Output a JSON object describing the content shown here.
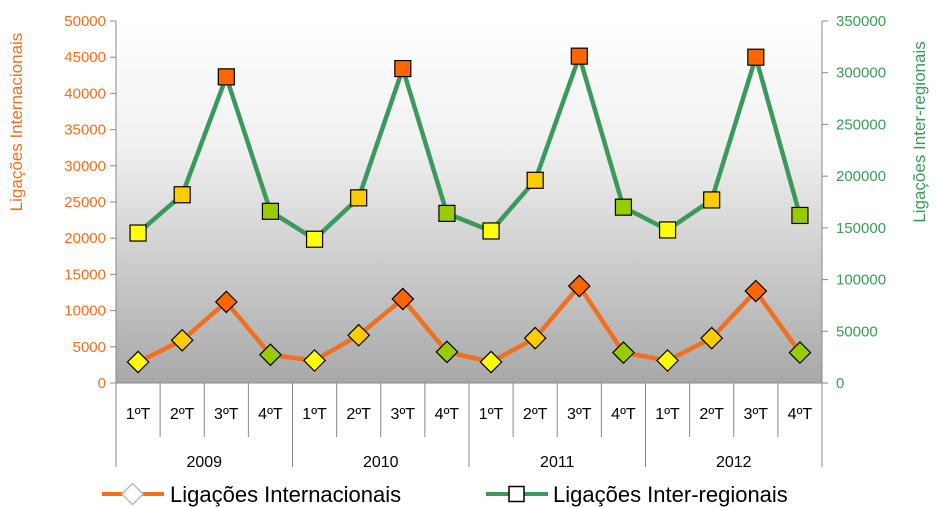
{
  "chart_data": {
    "type": "line",
    "y_left": {
      "label": "Ligações Internacionais",
      "min": 0,
      "max": 50000,
      "step": 5000,
      "color": "#f07020",
      "ticks": [
        "0",
        "5000",
        "10000",
        "15000",
        "20000",
        "25000",
        "30000",
        "35000",
        "40000",
        "45000",
        "50000"
      ]
    },
    "y_right": {
      "label": "Ligações Inter-regionais",
      "min": 0,
      "max": 350000,
      "step": 50000,
      "color": "#3a9a5c",
      "ticks": [
        "0",
        "50000",
        "100000",
        "150000",
        "200000",
        "250000",
        "300000",
        "350000"
      ]
    },
    "quarters": [
      "1ºT",
      "2ºT",
      "3ºT",
      "4ºT",
      "1ºT",
      "2ºT",
      "3ºT",
      "4ºT",
      "1ºT",
      "2ºT",
      "3ºT",
      "4ºT",
      "1ºT",
      "2ºT",
      "3ºT",
      "4ºT"
    ],
    "years": [
      "2009",
      "2010",
      "2011",
      "2012"
    ],
    "marker_colors": [
      "#ffff00",
      "#ffcc00",
      "#ff6600",
      "#99cc00"
    ],
    "series": [
      {
        "name": "Ligações Internacionais",
        "axis": "left",
        "color": "#f07020",
        "values": [
          2900,
          5900,
          11200,
          3900,
          3100,
          6600,
          11600,
          4300,
          2900,
          6200,
          13400,
          4200,
          3100,
          6200,
          12700,
          4200
        ]
      },
      {
        "name": "Ligações Inter-regionais",
        "axis": "right",
        "color": "#3a9a5c",
        "values": [
          145000,
          182000,
          296000,
          166000,
          139000,
          179000,
          304000,
          164000,
          147000,
          196000,
          316000,
          170000,
          148000,
          177000,
          315000,
          162000
        ]
      }
    ],
    "legend": {
      "position": "bottom"
    },
    "grid": false
  }
}
